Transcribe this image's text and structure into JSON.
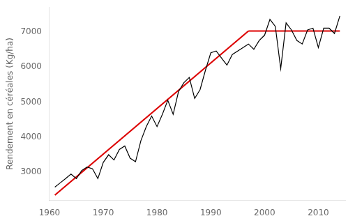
{
  "chart_data": {
    "type": "line",
    "ylabel": "Rendement en céréales (Kg/ha)",
    "series": [
      {
        "color": "#000000",
        "x": [
          1961,
          1962,
          1963,
          1964,
          1965,
          1966,
          1967,
          1968,
          1969,
          1970,
          1971,
          1972,
          1973,
          1974,
          1975,
          1976,
          1977,
          1978,
          1979,
          1980,
          1981,
          1982,
          1983,
          1984,
          1985,
          1986,
          1987,
          1988,
          1989,
          1990,
          1991,
          1992,
          1993,
          1994,
          1995,
          1996,
          1997,
          1998,
          1999,
          2000,
          2001,
          2002,
          2003,
          2004,
          2005,
          2006,
          2007,
          2008,
          2009,
          2010,
          2011,
          2012,
          2013,
          2014
        ],
        "values": [
          2580,
          2700,
          2820,
          2950,
          2820,
          3050,
          3150,
          3100,
          2820,
          3280,
          3500,
          3350,
          3650,
          3750,
          3400,
          3300,
          3900,
          4300,
          4600,
          4300,
          4650,
          5050,
          4650,
          5300,
          5550,
          5700,
          5100,
          5350,
          5900,
          6400,
          6450,
          6250,
          6050,
          6350,
          6450,
          6550,
          6650,
          6500,
          6750,
          6900,
          7350,
          7150,
          5950,
          7250,
          7050,
          6750,
          6650,
          7050,
          7100,
          6550,
          7100,
          7100,
          6950,
          7450
        ]
      },
      {
        "color": "#dd0000",
        "x": [
          1961,
          1997
        ],
        "values": [
          2350,
          7020
        ]
      },
      {
        "color": "#dd0000",
        "x": [
          1997,
          2014
        ],
        "values": [
          7020,
          7020
        ]
      }
    ],
    "xlim": [
      1960,
      2015
    ],
    "xticks": [
      1960,
      1970,
      1980,
      1990,
      2000,
      2010
    ],
    "ylim": [
      2200,
      7700
    ],
    "yticks": [
      3000,
      4000,
      5000,
      6000,
      7000
    ],
    "grid": false
  }
}
